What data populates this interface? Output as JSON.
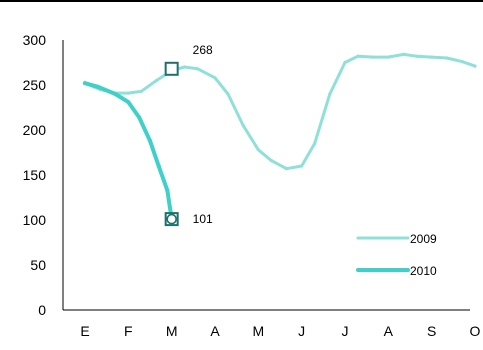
{
  "chart_data": {
    "type": "line",
    "title": "",
    "xlabel": "",
    "ylabel": "",
    "categories": [
      "E",
      "F",
      "M",
      "A",
      "M",
      "J",
      "J",
      "A",
      "S",
      "O"
    ],
    "ylim": [
      0,
      300
    ],
    "yticks": [
      0,
      50,
      100,
      150,
      200,
      250,
      300
    ],
    "grid": false,
    "legend_position": "lower-right",
    "series": [
      {
        "name": "2009",
        "color": "#8FE0D8",
        "style": "light",
        "points": [
          {
            "x": 0.0,
            "y": 252
          },
          {
            "x": 0.35,
            "y": 245
          },
          {
            "x": 0.7,
            "y": 241
          },
          {
            "x": 1.0,
            "y": 241
          },
          {
            "x": 1.3,
            "y": 243
          },
          {
            "x": 1.65,
            "y": 255
          },
          {
            "x": 2.0,
            "y": 266
          },
          {
            "x": 2.3,
            "y": 270
          },
          {
            "x": 2.6,
            "y": 268
          },
          {
            "x": 3.0,
            "y": 258
          },
          {
            "x": 3.3,
            "y": 240
          },
          {
            "x": 3.65,
            "y": 205
          },
          {
            "x": 4.0,
            "y": 178
          },
          {
            "x": 4.3,
            "y": 166
          },
          {
            "x": 4.65,
            "y": 157
          },
          {
            "x": 5.0,
            "y": 160
          },
          {
            "x": 5.3,
            "y": 185
          },
          {
            "x": 5.65,
            "y": 240
          },
          {
            "x": 6.0,
            "y": 275
          },
          {
            "x": 6.3,
            "y": 282
          },
          {
            "x": 6.65,
            "y": 281
          },
          {
            "x": 7.0,
            "y": 281
          },
          {
            "x": 7.35,
            "y": 284
          },
          {
            "x": 7.65,
            "y": 282
          },
          {
            "x": 8.0,
            "y": 281
          },
          {
            "x": 8.35,
            "y": 280
          },
          {
            "x": 8.7,
            "y": 276
          },
          {
            "x": 9.0,
            "y": 271
          }
        ]
      },
      {
        "name": "2010",
        "color": "#3FD1C9",
        "style": "bold",
        "points": [
          {
            "x": 0.0,
            "y": 252
          },
          {
            "x": 0.3,
            "y": 248
          },
          {
            "x": 0.7,
            "y": 240
          },
          {
            "x": 1.0,
            "y": 231
          },
          {
            "x": 1.25,
            "y": 214
          },
          {
            "x": 1.5,
            "y": 188
          },
          {
            "x": 1.7,
            "y": 160
          },
          {
            "x": 1.9,
            "y": 133
          },
          {
            "x": 2.0,
            "y": 101
          }
        ]
      }
    ],
    "annotations": [
      {
        "x": 2.0,
        "y": 268,
        "label": "268",
        "marker": "square"
      },
      {
        "x": 2.0,
        "y": 101,
        "label": "101",
        "marker": "circle-square"
      }
    ]
  }
}
